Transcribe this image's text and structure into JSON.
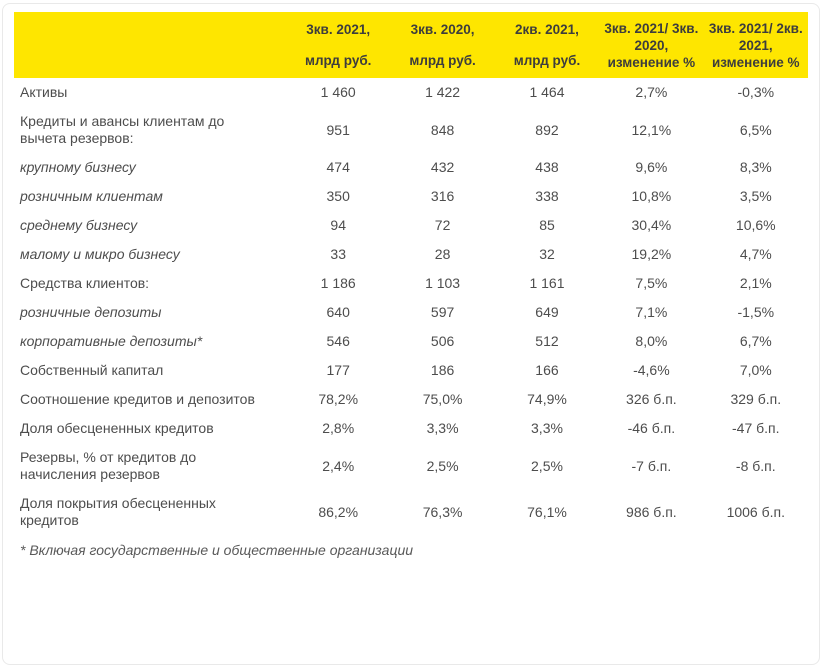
{
  "colors": {
    "header_bg": "#FEE600",
    "header_text": "#3d3d3d",
    "body_text": "#4d4d4d",
    "footnote_text": "#595959"
  },
  "chart_data": {
    "type": "table",
    "header": {
      "label_col": "",
      "cols": [
        {
          "name": "3q2021-bln-rub",
          "lines": [
            "3кв. 2021,",
            "млрд руб."
          ]
        },
        {
          "name": "3q2020-bln-rub",
          "lines": [
            "3кв. 2020,",
            "млрд руб."
          ]
        },
        {
          "name": "2q2021-bln-rub",
          "lines": [
            "2кв. 2021,",
            "млрд руб."
          ]
        },
        {
          "name": "change-3q2021-vs-3q2020",
          "lines": [
            "3кв. 2021/ 3кв.",
            "2020,",
            "изменение %"
          ]
        },
        {
          "name": "change-3q2021-vs-2q2021",
          "lines": [
            "3кв. 2021/ 2кв.",
            "2021,",
            "изменение %"
          ]
        }
      ]
    },
    "rows": [
      {
        "label": "Активы",
        "italic": false,
        "values": [
          "1 460",
          "1 422",
          "1 464",
          "2,7%",
          "-0,3%"
        ]
      },
      {
        "label": "Кредиты и авансы клиентам до вычета резервов:",
        "italic": false,
        "values": [
          "951",
          "848",
          "892",
          "12,1%",
          "6,5%"
        ]
      },
      {
        "label": "крупному бизнесу",
        "italic": true,
        "values": [
          "474",
          "432",
          "438",
          "9,6%",
          "8,3%"
        ]
      },
      {
        "label": "розничным клиентам",
        "italic": true,
        "values": [
          "350",
          "316",
          "338",
          "10,8%",
          "3,5%"
        ]
      },
      {
        "label": "среднему бизнесу",
        "italic": true,
        "values": [
          "94",
          "72",
          "85",
          "30,4%",
          "10,6%"
        ]
      },
      {
        "label": "малому и микро бизнесу",
        "italic": true,
        "values": [
          "33",
          "28",
          "32",
          "19,2%",
          "4,7%"
        ]
      },
      {
        "label": "Средства клиентов:",
        "italic": false,
        "values": [
          "1 186",
          "1 103",
          "1 161",
          "7,5%",
          "2,1%"
        ]
      },
      {
        "label": "розничные депозиты",
        "italic": true,
        "values": [
          "640",
          "597",
          "649",
          "7,1%",
          "-1,5%"
        ]
      },
      {
        "label": "корпоративные депозиты*",
        "italic": true,
        "values": [
          "546",
          "506",
          "512",
          "8,0%",
          "6,7%"
        ]
      },
      {
        "label": "Собственный капитал",
        "italic": false,
        "values": [
          "177",
          "186",
          "166",
          "-4,6%",
          "7,0%"
        ]
      },
      {
        "label": "Соотношение кредитов и депозитов",
        "italic": false,
        "values": [
          "78,2%",
          "75,0%",
          "74,9%",
          "326 б.п.",
          "329 б.п."
        ]
      },
      {
        "label": "Доля обесцененных кредитов",
        "italic": false,
        "values": [
          "2,8%",
          "3,3%",
          "3,3%",
          "-46 б.п.",
          "-47 б.п."
        ]
      },
      {
        "label": "Резервы, % от кредитов до начисления резервов",
        "italic": false,
        "values": [
          "2,4%",
          "2,5%",
          "2,5%",
          "-7 б.п.",
          "-8 б.п."
        ]
      },
      {
        "label": "Доля покрытия обесцененных кредитов",
        "italic": false,
        "values": [
          "86,2%",
          "76,3%",
          "76,1%",
          "986 б.п.",
          "1006 б.п."
        ]
      }
    ],
    "footnote": "* Включая государственные и общественные организации"
  }
}
